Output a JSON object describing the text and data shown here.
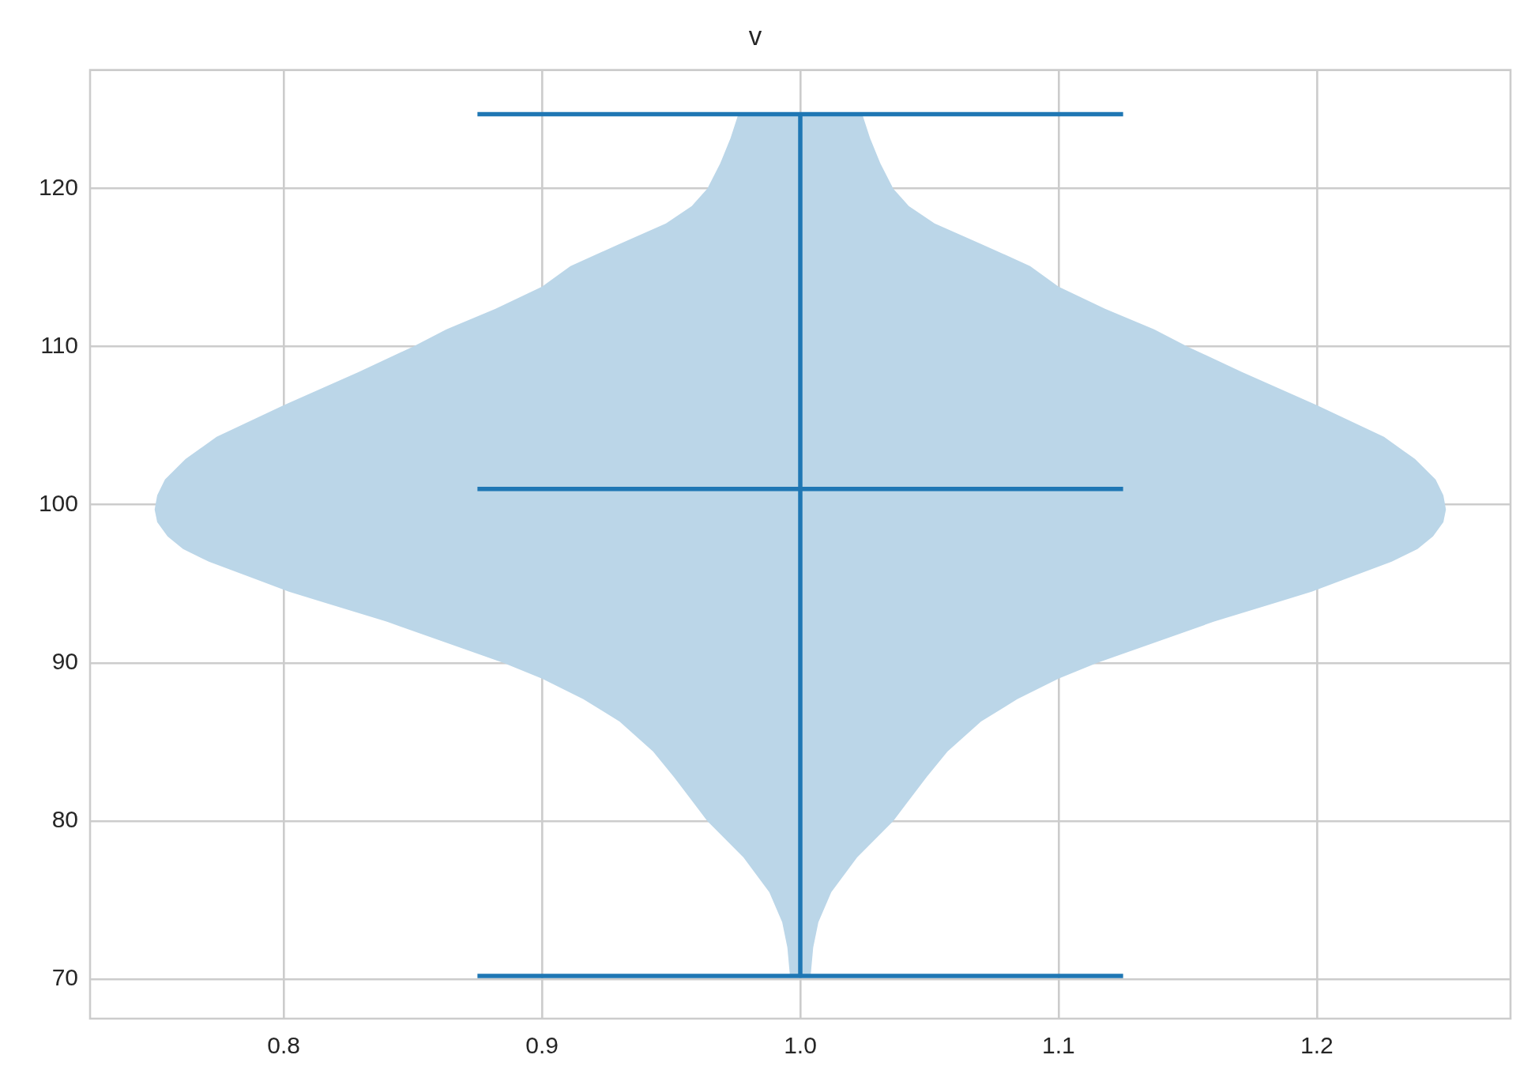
{
  "chart_data": {
    "type": "area",
    "title": "v",
    "series": [
      {
        "color": "#bbd6e8",
        "x": [
          1.024,
          1.027,
          1.031,
          1.036,
          1.042,
          1.052,
          1.07,
          1.089,
          1.1,
          1.118,
          1.137,
          1.15,
          1.171,
          1.2,
          1.226,
          1.238,
          1.246,
          1.249,
          1.25,
          1.249,
          1.245,
          1.239,
          1.229,
          1.211,
          1.198,
          1.16,
          1.115,
          1.1,
          1.084,
          1.07,
          1.057,
          1.049,
          1.036,
          1.022,
          1.012,
          1.007,
          1.005,
          1.004,
          0.996,
          0.995,
          0.993,
          0.988,
          0.978,
          0.964,
          0.951,
          0.943,
          0.93,
          0.916,
          0.9,
          0.885,
          0.84,
          0.802,
          0.789,
          0.771,
          0.761,
          0.755,
          0.751,
          0.75,
          0.751,
          0.754,
          0.762,
          0.774,
          0.8,
          0.829,
          0.85,
          0.863,
          0.882,
          0.9,
          0.911,
          0.93,
          0.948,
          0.958,
          0.964,
          0.969,
          0.973,
          0.976
        ],
        "values": [
          124.7,
          123.2,
          121.6,
          120.0,
          118.9,
          117.8,
          116.5,
          115.1,
          113.8,
          112.4,
          111.1,
          110.0,
          108.4,
          106.3,
          104.3,
          102.9,
          101.6,
          100.6,
          99.7,
          98.9,
          98.0,
          97.2,
          96.4,
          95.3,
          94.5,
          92.6,
          90.0,
          89.0,
          87.7,
          86.3,
          84.4,
          82.8,
          80.0,
          77.7,
          75.5,
          73.6,
          72.0,
          70.2,
          70.2,
          72.0,
          73.6,
          75.5,
          77.7,
          80.0,
          82.8,
          84.4,
          86.3,
          87.7,
          89.0,
          90.0,
          92.6,
          94.5,
          95.3,
          96.4,
          97.2,
          98.0,
          98.9,
          99.7,
          100.6,
          101.6,
          102.9,
          104.3,
          106.3,
          108.4,
          110.0,
          111.1,
          112.4,
          113.8,
          115.1,
          116.5,
          117.8,
          118.9,
          120.0,
          121.6,
          123.2,
          124.7
        ]
      },
      {
        "type": "line",
        "color": "#1f77b4",
        "x": [
          0.875,
          1.125
        ],
        "values": [
          124.7,
          124.7
        ]
      },
      {
        "type": "line",
        "color": "#1f77b4",
        "x": [
          0.875,
          1.125
        ],
        "values": [
          101.0,
          101.0
        ]
      },
      {
        "type": "line",
        "color": "#1f77b4",
        "x": [
          0.875,
          1.125
        ],
        "values": [
          70.2,
          70.2
        ]
      },
      {
        "type": "line",
        "color": "#1f77b4",
        "x": [
          1.0,
          1.0
        ],
        "values": [
          70.2,
          124.7
        ]
      }
    ],
    "xlim": [
      0.725,
      1.275
    ],
    "ylim": [
      67.5,
      127.5
    ],
    "xticks": [
      0.8,
      0.9,
      {
        "value": 1.0,
        "label": "1.0"
      },
      1.1,
      1.2
    ],
    "yticks": [
      70,
      80,
      90,
      100,
      110,
      120
    ],
    "grid": true,
    "marker": "none"
  }
}
